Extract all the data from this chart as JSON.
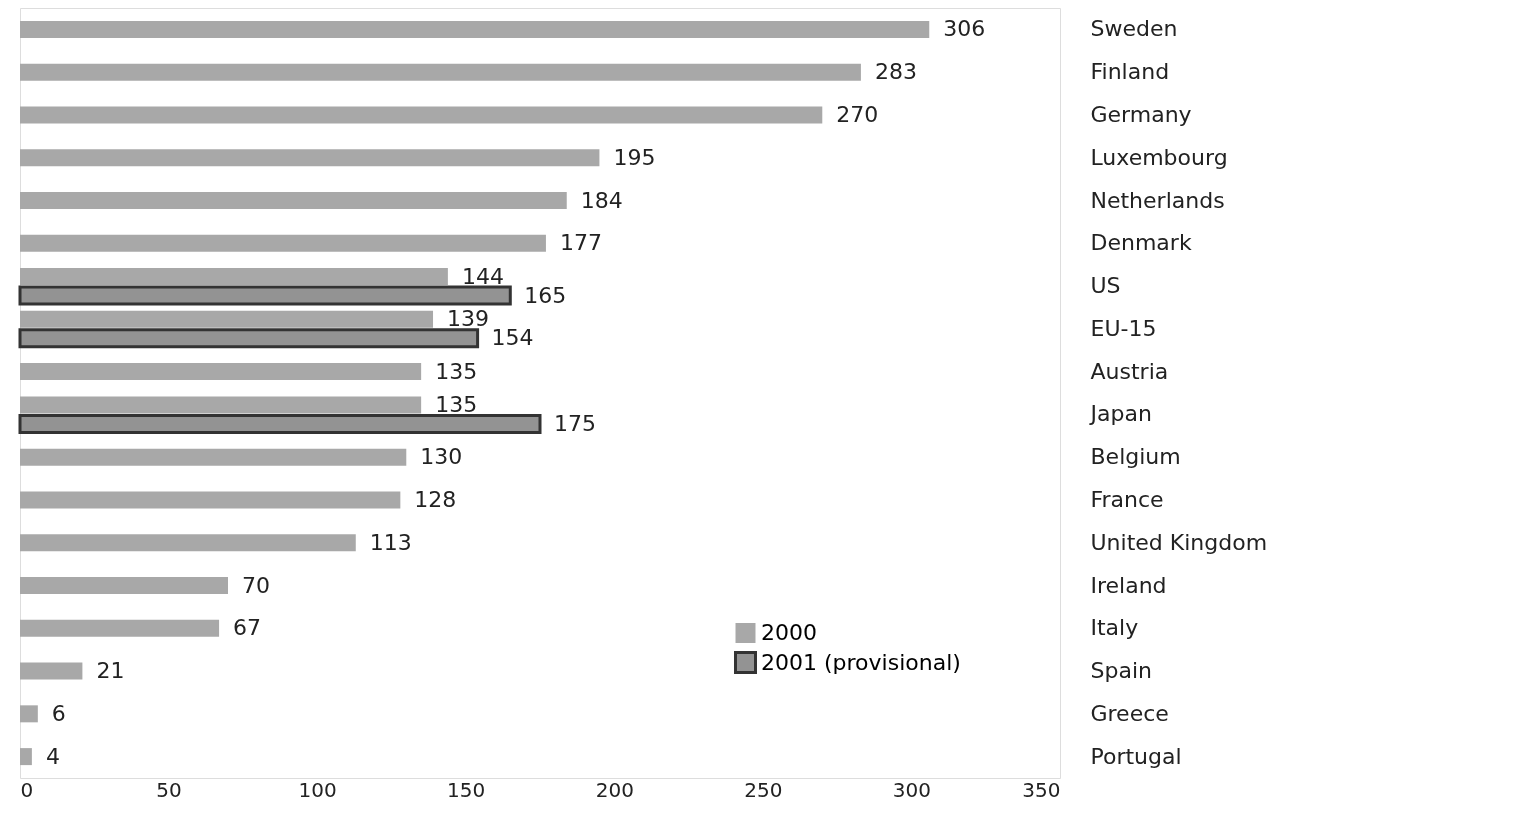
{
  "chart_data": {
    "type": "bar",
    "orientation": "horizontal",
    "categories": [
      "Sweden",
      "Finland",
      "Germany",
      "Luxembourg",
      "Netherlands",
      "Denmark",
      "US",
      "EU-15",
      "Austria",
      "Japan",
      "Belgium",
      "France",
      "United Kingdom",
      "Ireland",
      "Italy",
      "Spain",
      "Greece",
      "Portugal"
    ],
    "series": [
      {
        "name": "2000",
        "color": "#a8a8a8",
        "values": [
          306,
          283,
          270,
          195,
          184,
          177,
          144,
          139,
          135,
          135,
          130,
          128,
          113,
          70,
          67,
          21,
          6,
          4
        ]
      },
      {
        "name": "2001 (provisional)",
        "color": "#939393",
        "values": [
          null,
          null,
          null,
          null,
          null,
          null,
          165,
          154,
          null,
          175,
          null,
          null,
          null,
          null,
          null,
          null,
          null,
          null
        ]
      }
    ],
    "xlim": [
      0,
      350
    ],
    "xticks": [
      0,
      50,
      100,
      150,
      200,
      250,
      300,
      350
    ],
    "data_labels": true,
    "grid": false,
    "legend": "bottom right"
  }
}
